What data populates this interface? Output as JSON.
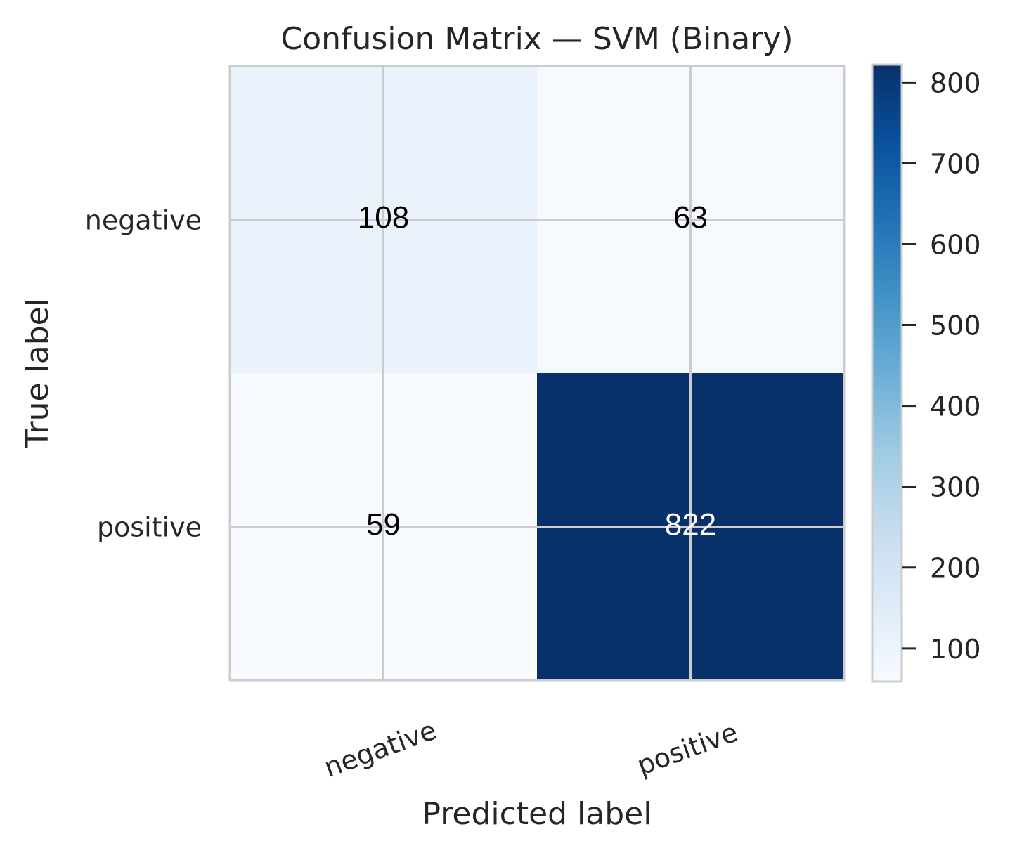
{
  "chart_data": {
    "type": "heatmap",
    "title": "Confusion Matrix — SVM (Binary)",
    "xlabel": "Predicted label",
    "ylabel": "True label",
    "x_categories": [
      "negative",
      "positive"
    ],
    "y_categories": [
      "negative",
      "positive"
    ],
    "values": [
      [
        108,
        63
      ],
      [
        59,
        822
      ]
    ],
    "colormap": "Blues",
    "color_range": [
      59,
      822
    ],
    "colorbar_ticks": [
      "100",
      "200",
      "300",
      "400",
      "500",
      "600",
      "700",
      "800"
    ],
    "colorbar_tick_values": [
      100,
      200,
      300,
      400,
      500,
      600,
      700,
      800
    ],
    "grid": true,
    "colors": {
      "low": "#f7fbff",
      "high": "#08306b",
      "text_dark": "#000000",
      "text_light": "#ffffff",
      "grid": "#cccccc"
    }
  }
}
